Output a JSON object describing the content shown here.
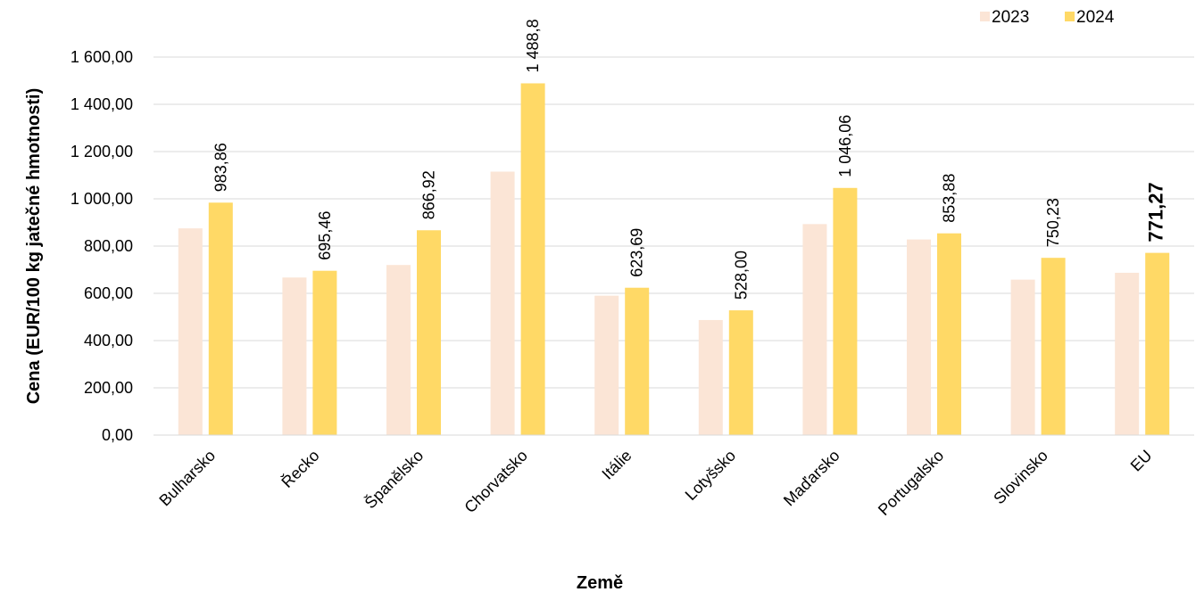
{
  "chart_data": {
    "type": "bar",
    "title": "",
    "xlabel": "Země",
    "ylabel": "Cena (EUR/100 kg jatečné hmotnosti)",
    "ylim": [
      0,
      1600
    ],
    "yticks": [
      "0,00",
      "200,00",
      "400,00",
      "600,00",
      "800,00",
      "1 000,00",
      "1 200,00",
      "1 400,00",
      "1 600,00"
    ],
    "grid": true,
    "legend_position": "top-right",
    "categories": [
      "Bulharsko",
      "Řecko",
      "Španělsko",
      "Chorvatsko",
      "Itálie",
      "Lotyšsko",
      "Maďarsko",
      "Portugalsko",
      "Slovinsko",
      "EU"
    ],
    "series": [
      {
        "name": "2023",
        "color": "#fbe5d6",
        "values": [
          875,
          667,
          720,
          1115,
          590,
          487,
          893,
          828,
          658,
          687
        ]
      },
      {
        "name": "2024",
        "color": "#ffd966",
        "values": [
          983.86,
          695.46,
          866.92,
          1488.8,
          623.69,
          528.0,
          1046.06,
          853.88,
          750.23,
          771.27
        ],
        "labels": [
          "983,86",
          "695,46",
          "866,92",
          "1 488,8",
          "623,69",
          "528,00",
          "1 046,06",
          "853,88",
          "750,23",
          "771,27"
        ],
        "bold_label_index": 9
      }
    ]
  }
}
